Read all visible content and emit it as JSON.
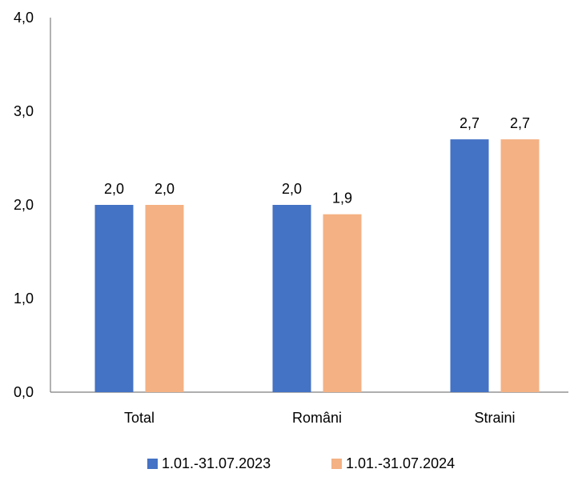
{
  "chart_data": {
    "type": "bar",
    "categories": [
      "Total",
      "Români",
      "Straini"
    ],
    "series": [
      {
        "name": "1.01.-31.07.2023",
        "values": [
          2.0,
          2.0,
          2.7
        ],
        "color": "#4472C4",
        "labels": [
          "2,0",
          "2,0",
          "2,7"
        ]
      },
      {
        "name": "1.01.-31.07.2024",
        "values": [
          2.0,
          1.9,
          2.7
        ],
        "color": "#F4B183",
        "labels": [
          "2,0",
          "1,9",
          "2,7"
        ]
      }
    ],
    "ylim": [
      0,
      4
    ],
    "yticks": [
      0,
      1,
      2,
      3,
      4
    ],
    "ytick_labels": [
      "0,0",
      "1,0",
      "2,0",
      "3,0",
      "4,0"
    ],
    "title": "",
    "xlabel": "",
    "ylabel": "",
    "grid": false,
    "legend_position": "bottom",
    "axis_color": "#7F7F7F"
  }
}
